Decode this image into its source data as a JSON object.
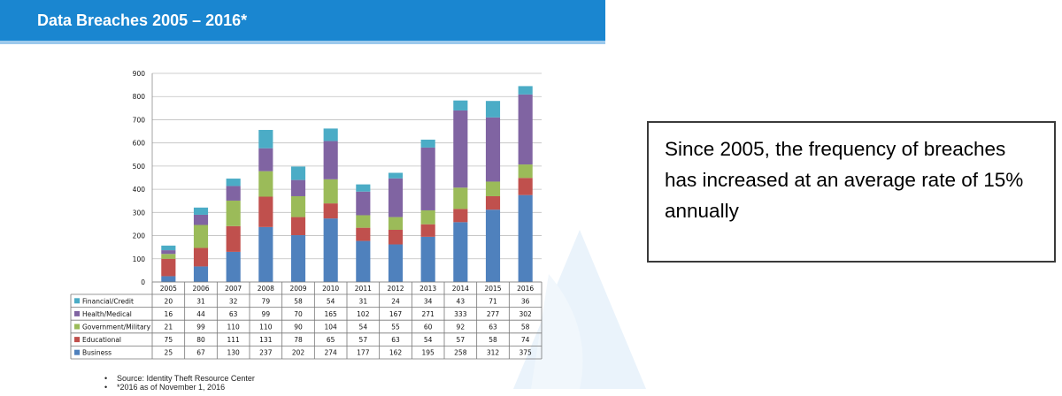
{
  "header": {
    "title": "Data Breaches 2005 – 2016*"
  },
  "stat_box": {
    "text": "Since 2005, the frequency  of breaches  has increased  at an average rate of 15% annually"
  },
  "footnotes": {
    "source": "Source: Identity Theft Resource Center",
    "note": "*2016 as of November 1, 2016"
  },
  "colors": {
    "header_bg": "#1a86d0",
    "Business": "#4f81bd",
    "Educational": "#c0504d",
    "Government/Military": "#9bbb59",
    "Health/Medical": "#8064a2",
    "Financial/Credit": "#4bacc6"
  },
  "chart_data": {
    "type": "bar",
    "stacked": true,
    "title": "",
    "xlabel": "",
    "ylabel": "",
    "ylim": [
      0,
      900
    ],
    "yticks": [
      0,
      100,
      200,
      300,
      400,
      500,
      600,
      700,
      800,
      900
    ],
    "grid": true,
    "legend": "table-below",
    "categories": [
      "2005",
      "2006",
      "2007",
      "2008",
      "2009",
      "2010",
      "2011",
      "2012",
      "2013",
      "2014",
      "2015",
      "2016"
    ],
    "series": [
      {
        "name": "Business",
        "values": [
          25,
          67,
          130,
          237,
          202,
          274,
          177,
          162,
          195,
          258,
          312,
          375
        ]
      },
      {
        "name": "Educational",
        "values": [
          75,
          80,
          111,
          131,
          78,
          65,
          57,
          63,
          54,
          57,
          58,
          74
        ]
      },
      {
        "name": "Government/Military",
        "values": [
          21,
          99,
          110,
          110,
          90,
          104,
          54,
          55,
          60,
          92,
          63,
          58
        ]
      },
      {
        "name": "Health/Medical",
        "values": [
          16,
          44,
          63,
          99,
          70,
          165,
          102,
          167,
          271,
          333,
          277,
          302
        ]
      },
      {
        "name": "Financial/Credit",
        "values": [
          20,
          31,
          32,
          79,
          58,
          54,
          31,
          24,
          34,
          43,
          71,
          36
        ]
      }
    ],
    "table_row_order": [
      "Financial/Credit",
      "Health/Medical",
      "Government/Military",
      "Educational",
      "Business"
    ]
  }
}
